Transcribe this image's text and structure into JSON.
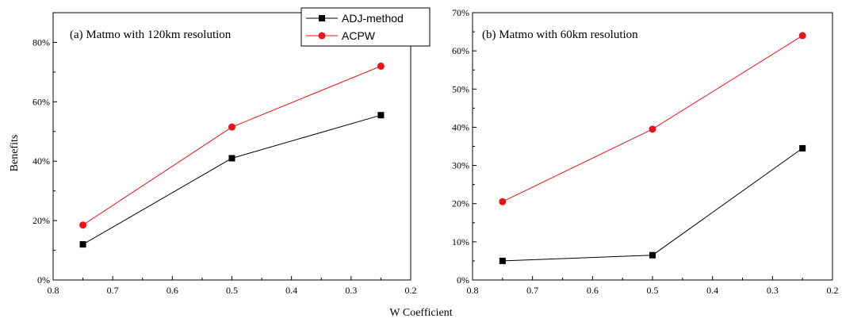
{
  "chart_data": [
    {
      "type": "line",
      "title": "(a) Matmo with 120km resolution",
      "xlabel": "W Coefficient",
      "ylabel": "Benefits",
      "x_reversed": true,
      "xlim": [
        0.8,
        0.2
      ],
      "ylim": [
        0,
        90
      ],
      "xticks": [
        "0.8",
        "0.7",
        "0.6",
        "0.5",
        "0.4",
        "0.3",
        "0.2"
      ],
      "yticks": [
        "0%",
        "20%",
        "40%",
        "60%",
        "80%"
      ],
      "x": [
        0.75,
        0.5,
        0.25
      ],
      "series": [
        {
          "name": "ADJ-method",
          "color": "#000000",
          "marker": "square",
          "values": [
            12,
            41,
            55.5
          ]
        },
        {
          "name": "ACPW",
          "color": "#e8141a",
          "marker": "circle",
          "values": [
            18.5,
            51.5,
            72
          ]
        }
      ],
      "legend": {
        "position": "top-right",
        "entries": [
          "ADJ-method",
          "ACPW"
        ]
      }
    },
    {
      "type": "line",
      "title": "(b) Matmo with 60km resolution",
      "x_reversed": true,
      "xlim": [
        0.8,
        0.2
      ],
      "ylim": [
        0,
        70
      ],
      "xticks": [
        "0.8",
        "0.7",
        "0.6",
        "0.5",
        "0.4",
        "0.3",
        "0.2"
      ],
      "yticks": [
        "0%",
        "10%",
        "20%",
        "30%",
        "40%",
        "50%",
        "60%",
        "70%"
      ],
      "x": [
        0.75,
        0.5,
        0.25
      ],
      "series": [
        {
          "name": "ADJ-method",
          "color": "#000000",
          "marker": "square",
          "values": [
            5,
            6.5,
            34.5
          ]
        },
        {
          "name": "ACPW",
          "color": "#e8141a",
          "marker": "circle",
          "values": [
            20.5,
            39.5,
            64
          ]
        }
      ]
    }
  ]
}
